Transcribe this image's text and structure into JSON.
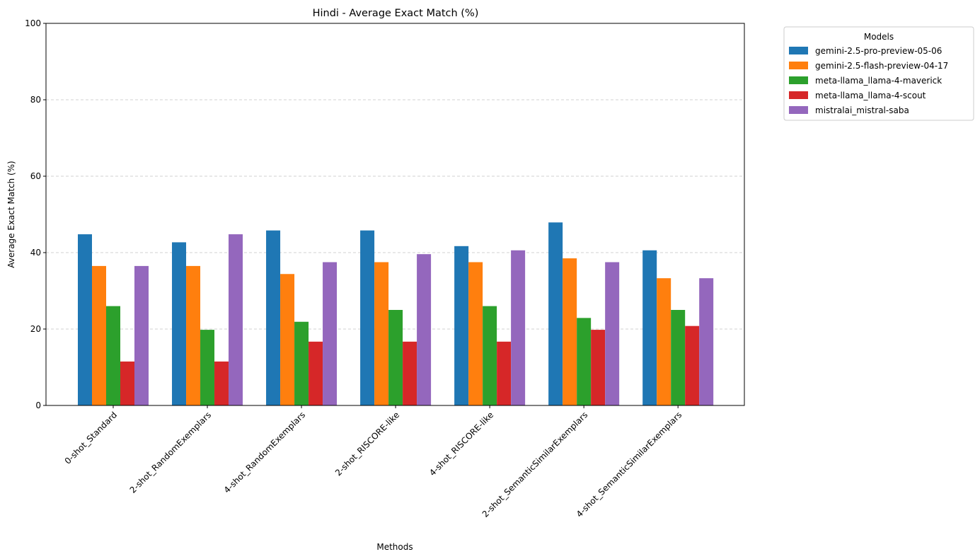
{
  "chart_data": {
    "type": "bar",
    "title": "Hindi - Average Exact Match (%)",
    "xlabel": "Methods",
    "ylabel": "Average Exact Match (%)",
    "ylim": [
      0,
      100
    ],
    "yticks": [
      0,
      20,
      40,
      60,
      80,
      100
    ],
    "grid": "y-dashed",
    "legend": {
      "title": "Models",
      "placement": "outside-top-right"
    },
    "categories": [
      "0-shot_Standard",
      "2-shot_RandomExemplars",
      "4-shot_RandomExemplars",
      "2-shot_RISCORE-like",
      "4-shot_RISCORE-like",
      "2-shot_SemanticSimilarExemplars",
      "4-shot_SemanticSimilarExemplars"
    ],
    "series": [
      {
        "name": "gemini-2.5-pro-preview-05-06",
        "color": "#1f77b4",
        "values": [
          44.8,
          42.7,
          45.8,
          45.8,
          41.7,
          47.9,
          40.6
        ]
      },
      {
        "name": "gemini-2.5-flash-preview-04-17",
        "color": "#ff7f0e",
        "values": [
          36.5,
          36.5,
          34.4,
          37.5,
          37.5,
          38.5,
          33.3
        ]
      },
      {
        "name": "meta-llama_llama-4-maverick",
        "color": "#2ca02c",
        "values": [
          26.0,
          19.8,
          21.9,
          25.0,
          26.0,
          22.9,
          25.0
        ]
      },
      {
        "name": "meta-llama_llama-4-scout",
        "color": "#d62728",
        "values": [
          11.5,
          11.5,
          16.7,
          16.7,
          16.7,
          19.8,
          20.8
        ]
      },
      {
        "name": "mistralai_mistral-saba",
        "color": "#9467bd",
        "values": [
          36.5,
          44.8,
          37.5,
          39.6,
          40.6,
          37.5,
          33.3
        ]
      }
    ]
  }
}
